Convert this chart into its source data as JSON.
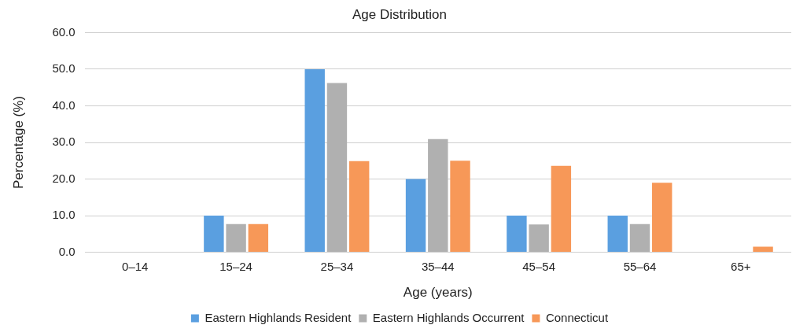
{
  "chart_data": {
    "type": "bar",
    "title": "Age Distribution",
    "xlabel": "Age (years)",
    "ylabel": "Percentage (%)",
    "categories": [
      "0–14",
      "15–24",
      "25–34",
      "35–44",
      "45–54",
      "55–64",
      "65+"
    ],
    "series": [
      {
        "name": "Eastern Highlands Resident",
        "color": "#5a9fe0",
        "values": [
          0,
          10,
          50,
          20,
          10,
          10,
          0
        ]
      },
      {
        "name": "Eastern Highlands Occurrent",
        "color": "#b0b0b0",
        "values": [
          0,
          7.7,
          46.2,
          30.9,
          7.6,
          7.7,
          0
        ]
      },
      {
        "name": "Connecticut",
        "color": "#f79858",
        "values": [
          0,
          7.7,
          24.9,
          25,
          23.6,
          19,
          1.5
        ]
      }
    ],
    "ylim": [
      0,
      60
    ],
    "yticks": [
      {
        "value": 0,
        "label": "0.0"
      },
      {
        "value": 10,
        "label": "10.0"
      },
      {
        "value": 20,
        "label": "20.0"
      },
      {
        "value": 30,
        "label": "30.0"
      },
      {
        "value": 40,
        "label": "40.0"
      },
      {
        "value": 50,
        "label": "50.0"
      },
      {
        "value": 60,
        "label": "60.0"
      }
    ],
    "grid": "y",
    "legend": "bottom"
  }
}
